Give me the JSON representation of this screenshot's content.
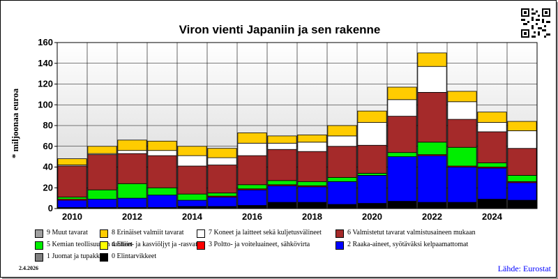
{
  "chart_data": {
    "type": "bar",
    "stacked": true,
    "title": "Viron vienti Japaniin ja sen rakenne",
    "ylabel": "* miljoonaa euroa",
    "ylim": [
      0,
      160
    ],
    "yticks": [
      0,
      20,
      40,
      60,
      80,
      100,
      120,
      140,
      160
    ],
    "xtick_labels": [
      "2010",
      "2012",
      "2014",
      "2016",
      "2018",
      "2020",
      "2022",
      "2024"
    ],
    "categories": [
      "2010",
      "2011",
      "2012",
      "2013",
      "2014",
      "2015",
      "2016",
      "2017",
      "2018",
      "2019",
      "2020",
      "2021",
      "2022",
      "2023",
      "2024",
      "2025"
    ],
    "grid": true,
    "background_gradient": [
      "#ffffff",
      "#d8d8d8"
    ],
    "series": [
      {
        "name": "0 Elintarvikkeet",
        "color": "#000000",
        "values": [
          1,
          1,
          1,
          1,
          2,
          2,
          3,
          6,
          6,
          4,
          5,
          7,
          6,
          6,
          9,
          8
        ]
      },
      {
        "name": "1 Juomat ja tupakka",
        "color": "#808080",
        "values": [
          0,
          0,
          0,
          0,
          0,
          0,
          0,
          0,
          0,
          0,
          0,
          0,
          0,
          0,
          0,
          0
        ]
      },
      {
        "name": "2 Raaka-aineet, syötäväksi kelpaamattomat",
        "color": "#0000ff",
        "values": [
          7,
          8,
          9,
          12,
          6,
          9,
          15,
          16,
          15,
          22,
          27,
          43,
          45,
          34,
          30,
          17
        ]
      },
      {
        "name": "3 Poltto- ja voiteluaineet, sähkövirta",
        "color": "#ff0000",
        "values": [
          1,
          0,
          0,
          0,
          0,
          1,
          1,
          1,
          1,
          0,
          0,
          0,
          1,
          1,
          1,
          1
        ]
      },
      {
        "name": "4 Eläin- ja kasviöljyt ja -rasvat",
        "color": "#ffff00",
        "values": [
          0,
          0,
          0,
          0,
          0,
          0,
          0,
          0,
          0,
          0,
          0,
          0,
          0,
          0,
          0,
          0
        ]
      },
      {
        "name": "5 Kemian teollisuuden tuotteet",
        "color": "#00ee00",
        "values": [
          2,
          9,
          14,
          7,
          6,
          3,
          4,
          4,
          4,
          4,
          2,
          4,
          12,
          18,
          4,
          6
        ]
      },
      {
        "name": "6 Valmistetut tavarat valmistusaineen mukaan",
        "color": "#a52a2a",
        "values": [
          30,
          34,
          29,
          31,
          27,
          27,
          28,
          30,
          29,
          30,
          27,
          35,
          48,
          27,
          30,
          26
        ]
      },
      {
        "name": "7 Koneet ja laitteet sekä kuljetusvälineet",
        "color": "#ffffff",
        "values": [
          1,
          1,
          3,
          5,
          10,
          7,
          12,
          6,
          9,
          10,
          22,
          16,
          25,
          17,
          9,
          17
        ]
      },
      {
        "name": "8 Erinäiset valmiit tavarat",
        "color": "#ffcc00",
        "values": [
          6,
          7,
          10,
          9,
          9,
          9,
          10,
          7,
          7,
          10,
          11,
          12,
          13,
          10,
          10,
          9
        ]
      },
      {
        "name": "9 Muut tavarat",
        "color": "#a0a0a0",
        "values": [
          0,
          0,
          0,
          0,
          0,
          0,
          0,
          0,
          0,
          0,
          0,
          0,
          0,
          0,
          0,
          0
        ]
      }
    ],
    "legend": {
      "position": "bottom",
      "rows": [
        [
          "9 Muut tavarat",
          "8 Erinäiset valmiit tavarat",
          "7 Koneet ja laitteet sekä kuljetusvälineet",
          "6 Valmistetut tavarat valmistusaineen mukaan"
        ],
        [
          "5 Kemian teollisuuden tuotteet",
          "4 Eläin- ja kasviöljyt ja -rasvat",
          "3 Poltto- ja voiteluaineet, sähkövirta",
          "2 Raaka-aineet, syötäväksi kelpaamattomat"
        ],
        [
          "1 Juomat ja tupakka",
          "0 Elintarvikkeet"
        ]
      ]
    }
  },
  "date": "2.4.2026",
  "source": "Lähde: Eurostat",
  "icons": {
    "qr": "qr-code-icon"
  }
}
